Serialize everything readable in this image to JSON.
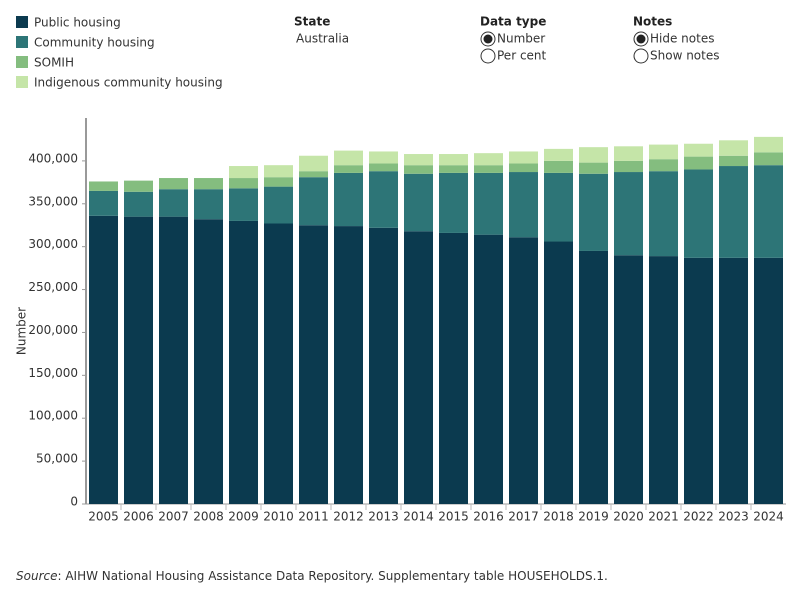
{
  "chart_data": {
    "type": "stacked_bar",
    "y_label": "Number",
    "categories": [
      "2005",
      "2006",
      "2007",
      "2008",
      "2009",
      "2010",
      "2011",
      "2012",
      "2013",
      "2014",
      "2015",
      "2016",
      "2017",
      "2018",
      "2019",
      "2020",
      "2021",
      "2022",
      "2023",
      "2024"
    ],
    "series": [
      {
        "name": "Public housing",
        "color": "#0b3a4f",
        "values": [
          336000,
          335000,
          335000,
          332000,
          330000,
          327000,
          325000,
          324000,
          322000,
          318000,
          316000,
          314000,
          311000,
          306000,
          295000,
          290000,
          289000,
          287000,
          287000,
          287000
        ]
      },
      {
        "name": "Community housing",
        "color": "#2d7577",
        "values": [
          29000,
          29000,
          32000,
          35000,
          38000,
          43000,
          56000,
          62000,
          66000,
          67000,
          70000,
          72000,
          76000,
          80000,
          90000,
          97000,
          99000,
          103000,
          107000,
          108000
        ]
      },
      {
        "name": "SOMIH",
        "color": "#84bd7f",
        "values": [
          11000,
          13000,
          13000,
          13000,
          12000,
          11000,
          7000,
          9000,
          9000,
          10000,
          9000,
          9000,
          10000,
          14000,
          13000,
          13000,
          14000,
          15000,
          12000,
          15000
        ]
      },
      {
        "name": "Indigenous community housing",
        "color": "#c5e5a8",
        "values": [
          null,
          null,
          null,
          null,
          14000,
          14000,
          18000,
          17000,
          14000,
          13000,
          13000,
          14000,
          14000,
          14000,
          18000,
          17000,
          17000,
          15000,
          18000,
          18000
        ]
      }
    ],
    "ylim": [
      0,
      450000
    ],
    "yticks": [
      0,
      {
        "value": 50000,
        "label": "50,000"
      },
      {
        "value": 100000,
        "label": "100,000"
      },
      {
        "value": 150000,
        "label": "150,000"
      },
      {
        "value": 200000,
        "label": "200,000"
      },
      {
        "value": 250000,
        "label": "250,000"
      },
      {
        "value": 300000,
        "label": "300,000"
      },
      {
        "value": 350000,
        "label": "350,000"
      },
      {
        "value": 400000,
        "label": "400,000"
      }
    ],
    "grid": false
  },
  "filters": [
    {
      "title": "State",
      "value": "Australia"
    },
    {
      "title": "Data type",
      "options": [
        "Number",
        "Per cent"
      ],
      "selected": 0
    },
    {
      "title": "Notes",
      "options": [
        "Hide notes",
        "Show notes"
      ],
      "selected": 0
    }
  ],
  "source": {
    "label": "Source",
    "text": ": AIHW National Housing Assistance Data Repository. Supplementary table HOUSEHOLDS.1."
  }
}
